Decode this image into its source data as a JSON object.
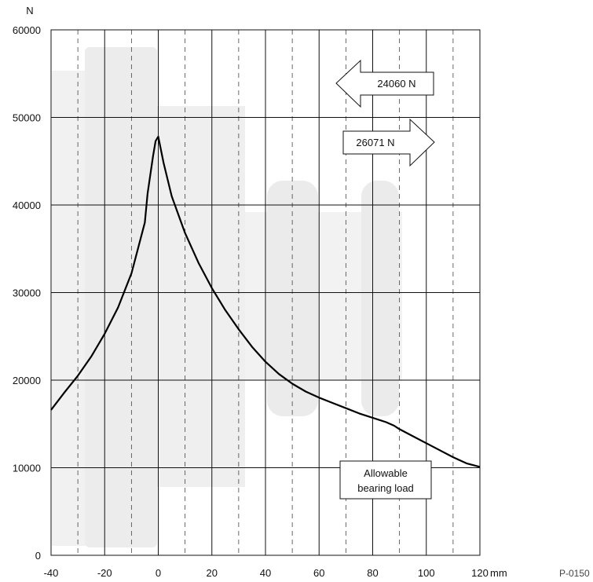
{
  "chart_data": {
    "type": "line",
    "title": "",
    "x_unit": "mm",
    "y_unit": "N",
    "xlim": [
      -40,
      120
    ],
    "ylim": [
      0,
      60000
    ],
    "x_ticks": [
      -40,
      -20,
      0,
      20,
      40,
      60,
      80,
      100,
      120
    ],
    "y_ticks": [
      0,
      10000,
      20000,
      30000,
      40000,
      50000,
      60000
    ],
    "minor_x_dashed": [
      -30,
      -10,
      10,
      30,
      50,
      70,
      90,
      110
    ],
    "grid": true,
    "series": [
      {
        "name": "Allowable bearing load",
        "x": [
          -40,
          -35,
          -30,
          -25,
          -20,
          -15,
          -10,
          -5,
          -4,
          -2,
          -1,
          0,
          2,
          5,
          10,
          15,
          20,
          25,
          30,
          35,
          40,
          45,
          50,
          55,
          60,
          65,
          70,
          75,
          80,
          85,
          88,
          90,
          95,
          100,
          105,
          110,
          115,
          120
        ],
        "y": [
          16600,
          18600,
          20500,
          22700,
          25300,
          28300,
          32200,
          38000,
          41300,
          45500,
          47300,
          47800,
          44800,
          41000,
          36800,
          33400,
          30500,
          28000,
          25800,
          23800,
          22100,
          20700,
          19600,
          18700,
          18000,
          17400,
          16800,
          16200,
          15700,
          15200,
          14800,
          14400,
          13600,
          12800,
          12000,
          11200,
          10500,
          10100
        ]
      }
    ],
    "annotations": {
      "left_arrow": "24060 N",
      "right_arrow": "26071 N",
      "curve_label_line1": "Allowable",
      "curve_label_line2": "bearing load"
    },
    "figure_code": "P-0150"
  }
}
